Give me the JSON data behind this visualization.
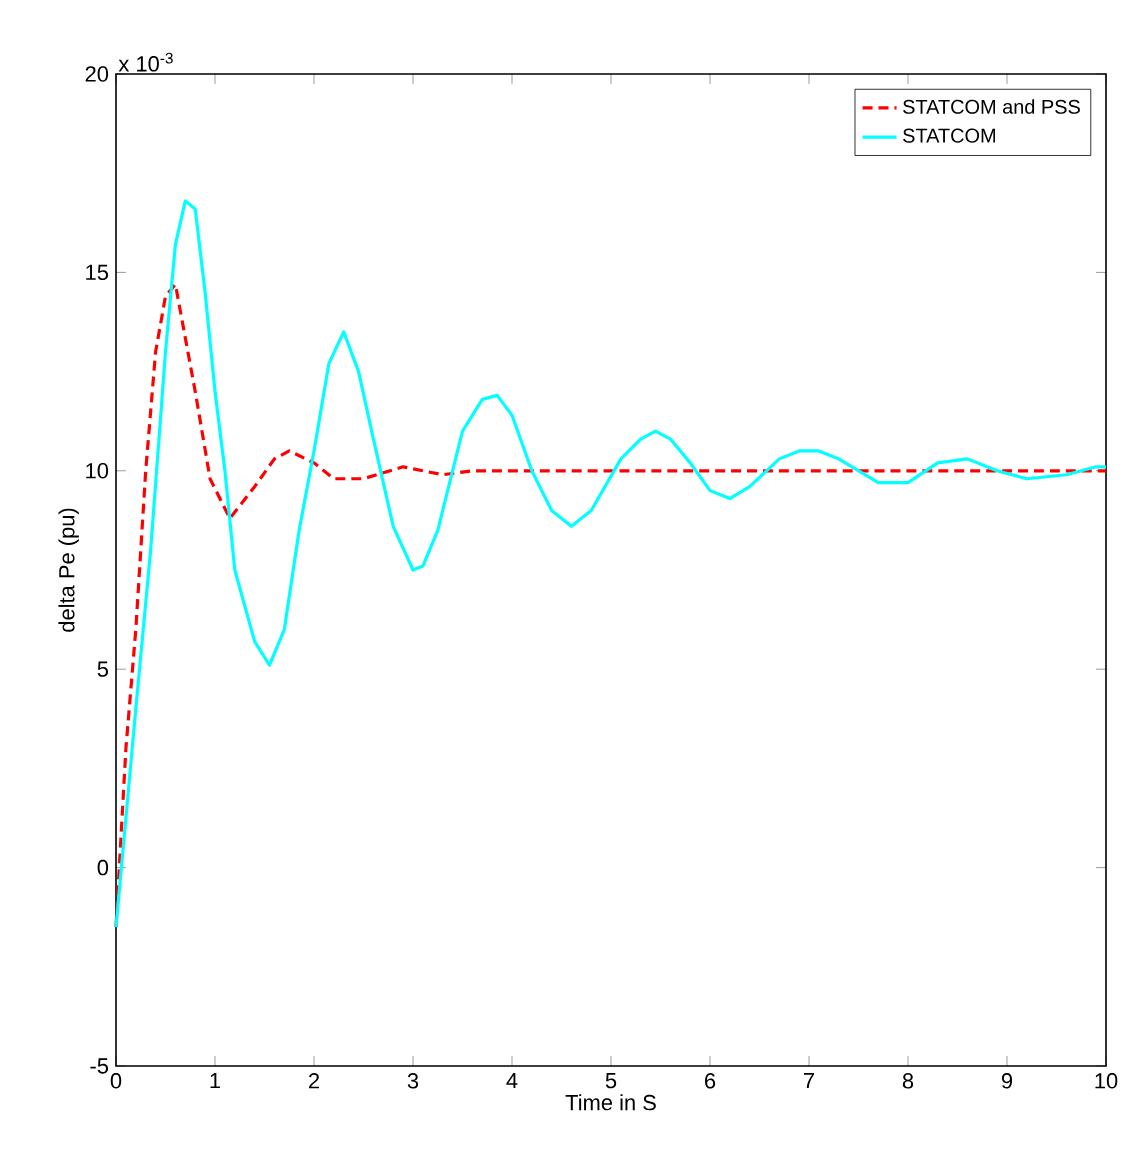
{
  "chart_data": {
    "type": "line",
    "xlabel": "Time in S",
    "ylabel": "delta  Pe (pu)",
    "annotations": [
      "x 10$^{-3}$"
    ],
    "xlim": [
      0,
      10
    ],
    "ylim": [
      -5,
      20
    ],
    "xticks": [
      0,
      1,
      2,
      3,
      4,
      5,
      6,
      7,
      8,
      9,
      10
    ],
    "yticks": [
      -5,
      0,
      5,
      10,
      15,
      20
    ],
    "legend": "top right",
    "grid": false,
    "series": [
      {
        "name": "STATCOM and PSS",
        "color": "#ff0000",
        "line_style": "dashed",
        "x": [
          0,
          0.1,
          0.2,
          0.3,
          0.4,
          0.5,
          0.6,
          0.8,
          0.95,
          1.15,
          1.4,
          1.6,
          1.75,
          2.0,
          2.2,
          2.5,
          2.9,
          3.3,
          3.6,
          10
        ],
        "values": [
          -1.5,
          3,
          6,
          10,
          13,
          14.4,
          14.7,
          12,
          9.8,
          8.8,
          9.6,
          10.3,
          10.5,
          10.2,
          9.8,
          9.8,
          10.1,
          9.9,
          10,
          10
        ]
      },
      {
        "name": "STATCOM",
        "color": "#00ffff",
        "line_style": "solid",
        "x": [
          0,
          0.2,
          0.35,
          0.5,
          0.6,
          0.7,
          0.8,
          0.9,
          1.0,
          1.1,
          1.2,
          1.4,
          1.55,
          1.7,
          1.85,
          2.0,
          2.15,
          2.3,
          2.45,
          2.6,
          2.8,
          3.0,
          3.1,
          3.25,
          3.5,
          3.7,
          3.85,
          4.0,
          4.2,
          4.4,
          4.6,
          4.8,
          5.1,
          5.3,
          5.45,
          5.6,
          5.8,
          6.0,
          6.2,
          6.4,
          6.7,
          6.9,
          7.1,
          7.3,
          7.7,
          8.0,
          8.3,
          8.6,
          8.9,
          9.2,
          9.6,
          9.9,
          10
        ],
        "values": [
          -1.5,
          4,
          8,
          13,
          15.7,
          16.8,
          16.6,
          14.5,
          12,
          10,
          7.5,
          5.7,
          5.1,
          6,
          8.5,
          10.5,
          12.7,
          13.5,
          12.5,
          10.8,
          8.6,
          7.5,
          7.6,
          8.5,
          11,
          11.8,
          11.9,
          11.4,
          10,
          9,
          8.6,
          9,
          10.3,
          10.8,
          11,
          10.8,
          10.2,
          9.5,
          9.3,
          9.6,
          10.3,
          10.5,
          10.5,
          10.3,
          9.7,
          9.7,
          10.2,
          10.3,
          10,
          9.8,
          9.9,
          10.1,
          10.1
        ]
      }
    ]
  }
}
